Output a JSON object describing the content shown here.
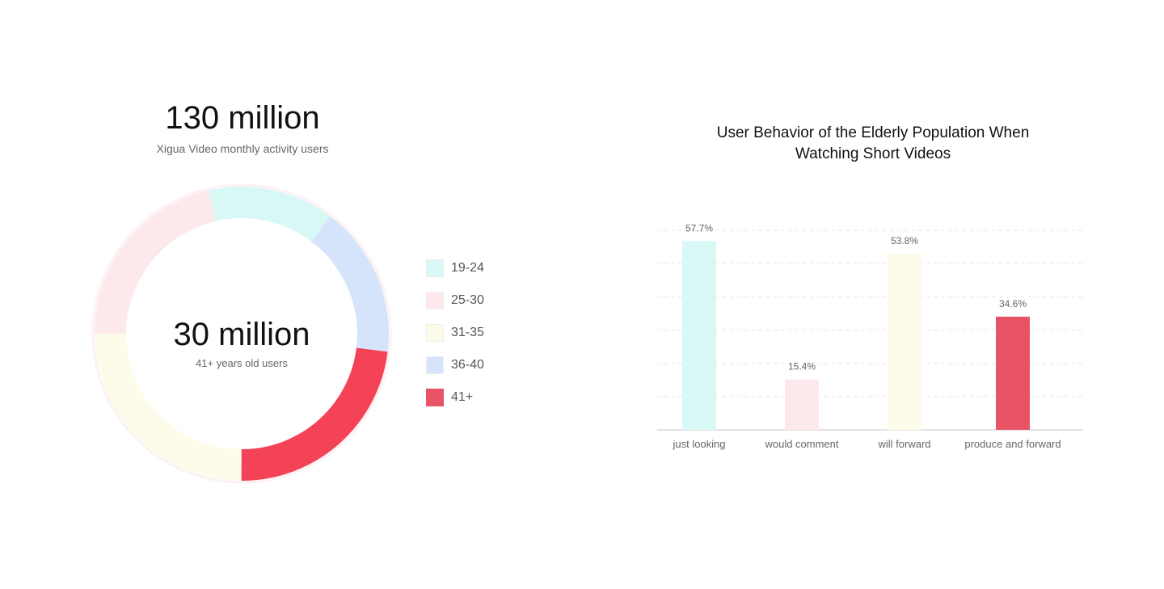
{
  "chart_data": [
    {
      "type": "pie",
      "title": "130 million",
      "subtitle": "Xigua Video monthly activity users",
      "center_value": "30 million",
      "center_label": "41+ years old users",
      "legend_position": "right",
      "categories": [
        "19-24",
        "25-30",
        "31-35",
        "36-40",
        "41+"
      ],
      "values": [
        13.9,
        21.4,
        25.0,
        16.7,
        23.1
      ],
      "colors": [
        "#d8f8f6",
        "#fde8ec",
        "#fdfbe9",
        "#d5e3fb",
        "#f44257"
      ],
      "order_clockwise_from_top": [
        "19-24",
        "36-40",
        "41+",
        "31-35",
        "25-30"
      ]
    },
    {
      "type": "bar",
      "title_lines": [
        "User Behavior of the Elderly Population When",
        "Watching Short Videos"
      ],
      "categories": [
        "just looking",
        "would comment",
        "will forward",
        "produce and forward"
      ],
      "values": [
        57.7,
        15.4,
        53.8,
        34.6
      ],
      "data_labels": [
        "57.7%",
        "15.4%",
        "53.8%",
        "34.6%"
      ],
      "colors": [
        "#d8f8f6",
        "#fde8ec",
        "#fdfbe9",
        "#e85466"
      ],
      "ylim": [
        0,
        61
      ],
      "grid": true,
      "y_axis_labels_shown": false
    }
  ]
}
